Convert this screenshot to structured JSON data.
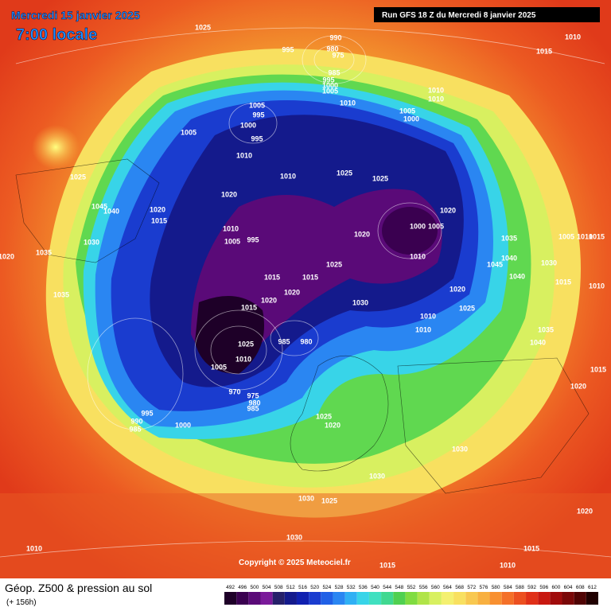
{
  "header": {
    "date": "Mercredi 15 janvier 2025",
    "time": "7:00 locale"
  },
  "run": "Run GFS 18 Z du Mercredi 8 janvier 2025",
  "copyright": "Copyright © 2025 Meteociel.fr",
  "legend": {
    "title": "Géop. Z500 & pression au sol",
    "subtitle": "(+ 156h)",
    "ticks": [
      492,
      496,
      500,
      504,
      508,
      512,
      516,
      520,
      524,
      528,
      532,
      536,
      540,
      544,
      548,
      552,
      556,
      560,
      564,
      568,
      572,
      576,
      580,
      584,
      588,
      592,
      596,
      600,
      604,
      608,
      612
    ],
    "colors": [
      "#1e0028",
      "#3a0050",
      "#5a0a78",
      "#7a1a9a",
      "#26206a",
      "#141a8c",
      "#1020b0",
      "#1a3ccf",
      "#2060e6",
      "#2a86f2",
      "#30b0f4",
      "#38d4e8",
      "#40e0c0",
      "#40d890",
      "#50d050",
      "#80dc40",
      "#b0e448",
      "#d8f060",
      "#f4f070",
      "#f8e060",
      "#f8c850",
      "#f8b040",
      "#f89030",
      "#f47028",
      "#ec5020",
      "#e03018",
      "#c81810",
      "#a00c0c",
      "#7a0808",
      "#500404",
      "#200000"
    ]
  },
  "isobar_labels": [
    1025,
    990,
    980,
    975,
    995,
    985,
    995,
    1000,
    1005,
    1010,
    1010,
    1010,
    1005,
    1000,
    1005,
    995,
    1000,
    995,
    1005,
    1010,
    1010,
    1025,
    1025,
    1025,
    1020,
    1020,
    1045,
    1040,
    1020,
    1015,
    1010,
    1005,
    995,
    1020,
    1000,
    1005,
    1035,
    1030,
    1035,
    1020,
    1010,
    1040,
    1045,
    1030,
    1040,
    1025,
    1015,
    1015,
    1015,
    1020,
    1020,
    1035,
    1020,
    1015,
    1030,
    1025,
    1010,
    1010,
    1035,
    1040,
    1025,
    985,
    980,
    1010,
    1005,
    1015,
    1020,
    970,
    975,
    980,
    985,
    995,
    990,
    985,
    1000,
    1025,
    1020,
    1030,
    1030,
    1030,
    1025,
    1030,
    1020,
    1010,
    1015,
    1010,
    1015,
    1010,
    1015,
    1010,
    1015,
    1010,
    1005
  ]
}
